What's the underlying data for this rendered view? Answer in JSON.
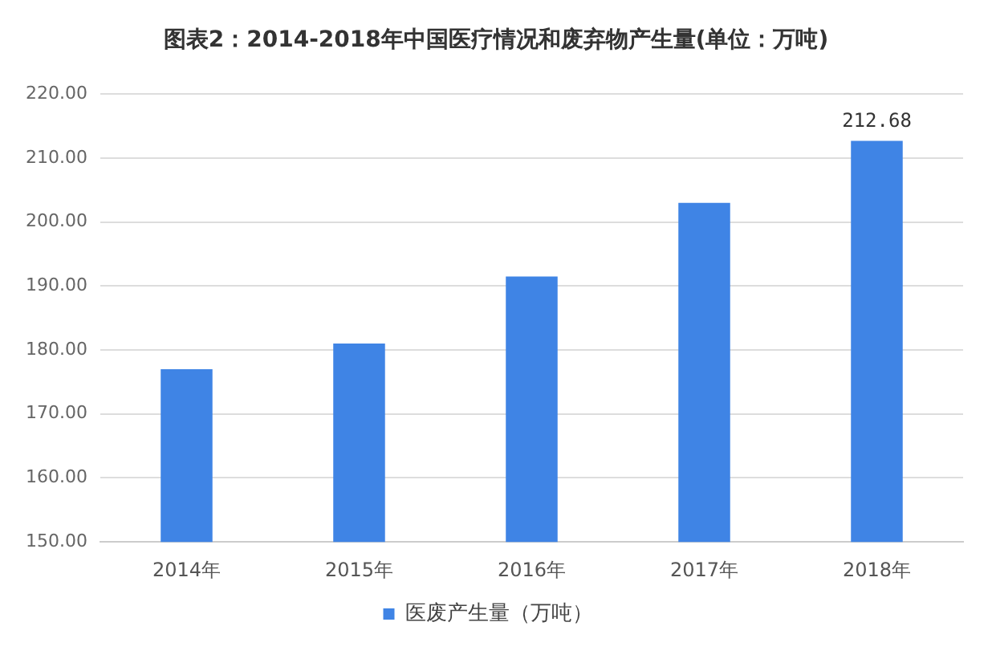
{
  "chart_data": {
    "type": "bar",
    "title": "图表2：2014-2018年中国医疗情况和废弃物产生量(单位：万吨)",
    "categories": [
      "2014年",
      "2015年",
      "2016年",
      "2017年",
      "2018年"
    ],
    "series": [
      {
        "name": "医废产生量（万吨）",
        "color": "#3f84e5",
        "values": [
          177,
          181,
          191.5,
          203,
          212.68
        ],
        "value_labels": [
          null,
          null,
          null,
          null,
          "212.68"
        ]
      }
    ],
    "ylim": [
      150,
      220
    ],
    "yticks": [
      {
        "value": 150,
        "label": "150.00"
      },
      {
        "value": 160,
        "label": "160.00"
      },
      {
        "value": 170,
        "label": "170.00"
      },
      {
        "value": 180,
        "label": "180.00"
      },
      {
        "value": 190,
        "label": "190.00"
      },
      {
        "value": 200,
        "label": "200.00"
      },
      {
        "value": 210,
        "label": "210.00"
      },
      {
        "value": 220,
        "label": "220.00"
      }
    ],
    "grid": "y",
    "legend": "bottom"
  }
}
